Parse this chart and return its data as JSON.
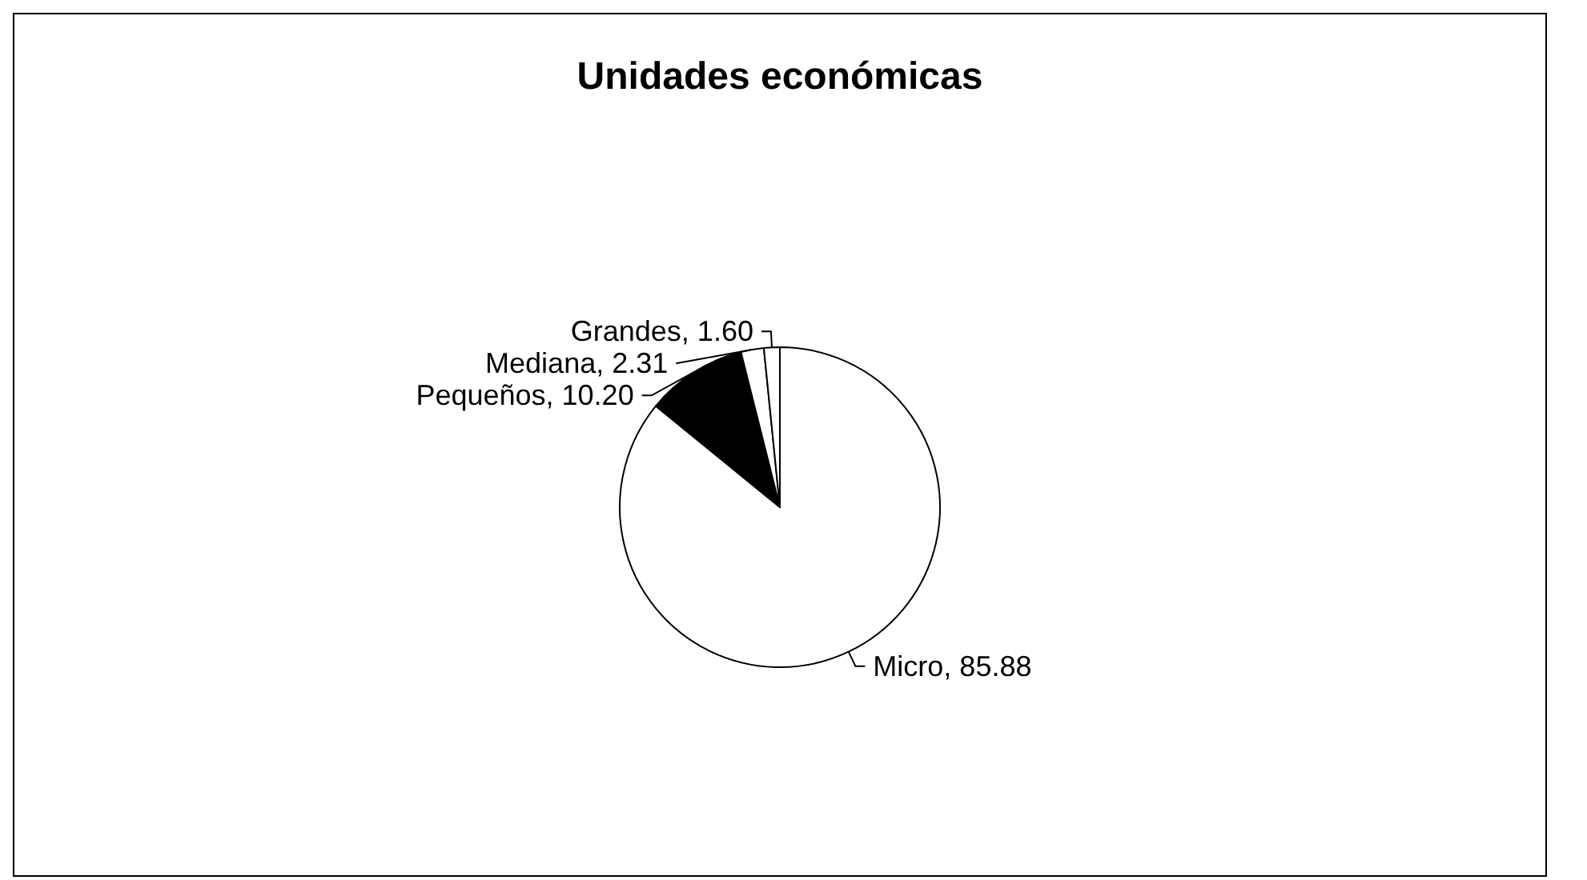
{
  "chart_data": {
    "type": "pie",
    "title": "Unidades económicas",
    "categories": [
      "Micro",
      "Pequeños",
      "Mediana",
      "Grandes"
    ],
    "values": [
      85.88,
      10.2,
      2.31,
      1.6
    ],
    "value_labels": [
      "85.88",
      "10.20",
      "2.31",
      "1.60"
    ],
    "colors": [
      "#ffffff",
      "#000000",
      "#ffffff",
      "#ffffff"
    ],
    "legend": false
  }
}
